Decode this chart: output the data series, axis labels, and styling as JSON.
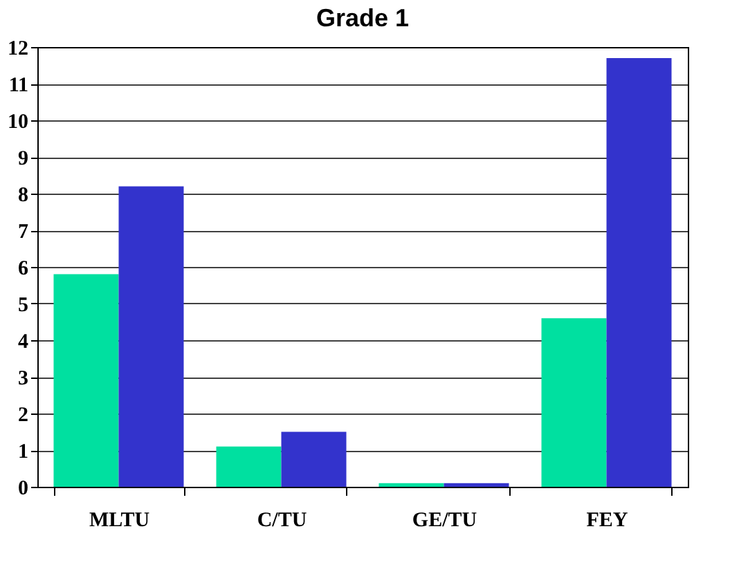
{
  "chart_data": {
    "type": "bar",
    "title": "Grade 1",
    "categories": [
      "MLTU",
      "C/TU",
      "GE/TU",
      "FEY"
    ],
    "series": [
      {
        "color": "#00e0a0",
        "values": [
          5.8,
          1.1,
          0.1,
          4.6
        ]
      },
      {
        "color": "#3333cc",
        "values": [
          8.2,
          1.5,
          0.1,
          11.7
        ]
      }
    ],
    "ylim": [
      0,
      12
    ],
    "yticks": [
      0,
      1,
      2,
      3,
      4,
      5,
      6,
      7,
      8,
      9,
      10,
      11,
      12
    ],
    "grid": "y",
    "legend": false
  }
}
